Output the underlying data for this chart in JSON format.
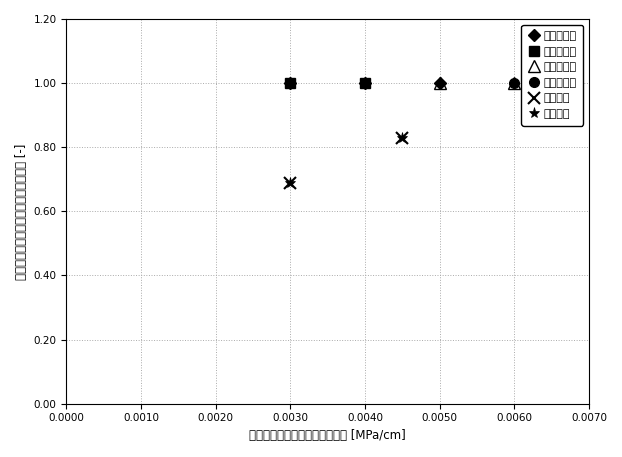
{
  "title": "",
  "xlabel": "充填停止時カラム圧／ベッド高 [MPa/cm]",
  "ylabel": "メインピークエリア／全ピークエリア [-]",
  "xlim": [
    0.0,
    0.007
  ],
  "ylim": [
    0.0,
    1.2
  ],
  "xticks": [
    0.0,
    0.001,
    0.002,
    0.003,
    0.004,
    0.005,
    0.006,
    0.007
  ],
  "yticks": [
    0.0,
    0.2,
    0.4,
    0.6,
    0.8,
    1.0,
    1.2
  ],
  "series": [
    {
      "label": "実施例１０",
      "x": [
        0.003,
        0.004,
        0.005
      ],
      "y": [
        1.0,
        1.0,
        1.0
      ],
      "marker": "D",
      "color": "black",
      "fillstyle": "full",
      "markersize": 6,
      "linestyle": "none"
    },
    {
      "label": "実施例１１",
      "x": [
        0.003,
        0.004
      ],
      "y": [
        1.0,
        1.0
      ],
      "marker": "s",
      "color": "black",
      "fillstyle": "full",
      "markersize": 7,
      "linestyle": "none"
    },
    {
      "label": "実施例１２",
      "x": [
        0.005,
        0.006
      ],
      "y": [
        1.0,
        1.0
      ],
      "marker": "^",
      "color": "black",
      "fillstyle": "none",
      "markersize": 8,
      "linestyle": "none"
    },
    {
      "label": "実施例１３",
      "x": [
        0.006
      ],
      "y": [
        1.0
      ],
      "marker": "o",
      "color": "black",
      "fillstyle": "full",
      "markersize": 7,
      "linestyle": "none"
    },
    {
      "label": "比較例７",
      "x": [
        0.003,
        0.0045
      ],
      "y": [
        0.69,
        0.83
      ],
      "marker": "x",
      "color": "black",
      "fillstyle": "full",
      "markersize": 8,
      "markeredgewidth": 1.5,
      "linestyle": "none"
    },
    {
      "label": "比較例８",
      "x": [
        0.003,
        0.0045
      ],
      "y": [
        0.69,
        0.83
      ],
      "marker": "*",
      "color": "black",
      "fillstyle": "full",
      "markersize": 8,
      "markeredgewidth": 0.5,
      "linestyle": "none"
    }
  ],
  "grid_color": "#aaaaaa",
  "background_color": "#ffffff",
  "legend_fontsize": 8,
  "tick_fontsize": 7.5,
  "label_fontsize": 8.5
}
